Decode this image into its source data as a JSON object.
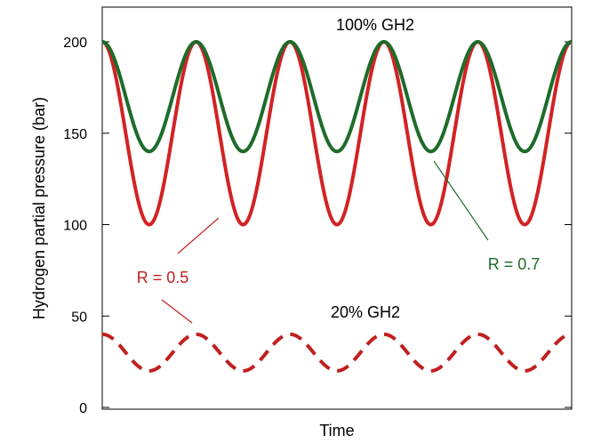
{
  "chart_data": {
    "type": "line",
    "xlabel": "Time",
    "ylabel": "Hydrogen partial pressure (bar)",
    "ylim": [
      0,
      200
    ],
    "yticks": [
      0,
      50,
      100,
      150,
      200
    ],
    "grid": false,
    "x_range": [
      0,
      5
    ],
    "periods": 5,
    "series": [
      {
        "name": "R = 0.7",
        "max": 200,
        "min": 140,
        "color": "#1e6b2a",
        "style": "solid"
      },
      {
        "name": "R = 0.5",
        "max": 200,
        "min": 100,
        "color": "#d32224",
        "style": "solid"
      },
      {
        "name": "R = 0.5",
        "max": 40,
        "min": 20,
        "color": "#c0201f",
        "style": "dashed"
      }
    ],
    "annotations": {
      "top_label": "100% GH2",
      "bottom_label": "20% GH2",
      "r07_label": "R = 0.7",
      "r05_label": "R = 0.5"
    },
    "colors": {
      "green": "#1e6b2a",
      "red": "#d32224",
      "pointer": "#333333"
    }
  }
}
